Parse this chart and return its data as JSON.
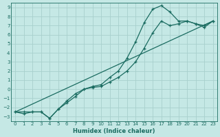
{
  "xlabel": "Humidex (Indice chaleur)",
  "ylabel": "",
  "bg_color": "#c5e8e5",
  "line_color": "#1a6b60",
  "grid_color": "#a8d0cc",
  "xlim": [
    -0.5,
    23.5
  ],
  "ylim": [
    -3.5,
    9.5
  ],
  "xticks": [
    0,
    1,
    2,
    3,
    4,
    5,
    6,
    7,
    8,
    9,
    10,
    11,
    12,
    13,
    14,
    15,
    16,
    17,
    18,
    19,
    20,
    21,
    22,
    23
  ],
  "yticks": [
    -3,
    -2,
    -1,
    0,
    1,
    2,
    3,
    4,
    5,
    6,
    7,
    8,
    9
  ],
  "line1_x": [
    0,
    1,
    2,
    3,
    4,
    5,
    6,
    7,
    8,
    9,
    10,
    11,
    12,
    13,
    14,
    15,
    16,
    17,
    18,
    19,
    20,
    21,
    22,
    23
  ],
  "line1_y": [
    -2.5,
    -2.7,
    -2.5,
    -2.5,
    -3.2,
    -2.2,
    -1.5,
    -0.8,
    0.0,
    0.2,
    0.3,
    0.8,
    1.3,
    2.0,
    3.0,
    4.5,
    6.2,
    7.5,
    7.0,
    7.2,
    7.5,
    7.2,
    7.0,
    7.5
  ],
  "line2_x": [
    0,
    1,
    2,
    3,
    4,
    5,
    6,
    7,
    8,
    9,
    10,
    11,
    12,
    13,
    14,
    15,
    16,
    17,
    18,
    19,
    20,
    21,
    22,
    23
  ],
  "line2_y": [
    -2.5,
    -2.5,
    -2.5,
    -2.5,
    -3.2,
    -2.2,
    -1.3,
    -0.5,
    0.0,
    0.3,
    0.5,
    1.3,
    2.0,
    3.4,
    5.2,
    7.3,
    8.8,
    9.2,
    8.5,
    7.5,
    7.5,
    7.2,
    6.8,
    7.5
  ],
  "line3_x": [
    0,
    23
  ],
  "line3_y": [
    -2.5,
    7.5
  ]
}
